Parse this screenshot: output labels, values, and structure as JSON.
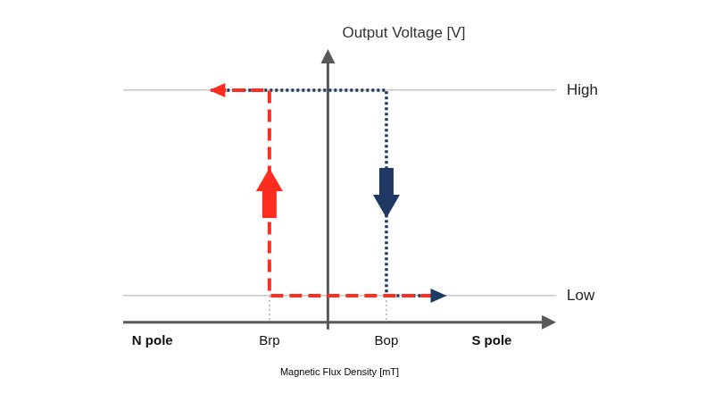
{
  "chart_data": {
    "type": "line",
    "y_label": "Output Voltage [V]",
    "x_label": "Magnetic Flux Density [mT]",
    "xlim": [
      -3.5,
      3.9
    ],
    "xticks": [
      {
        "value": -3,
        "label": "N pole"
      },
      {
        "value": -1,
        "label": "Brp"
      },
      {
        "value": 1,
        "label": "Bop"
      },
      {
        "value": 2.8,
        "label": "S pole"
      }
    ],
    "ylim": [
      -0.13,
      1.2
    ],
    "yticks": [
      {
        "value": 0,
        "label": "Low"
      },
      {
        "value": 1,
        "label": "High"
      }
    ],
    "grid": "y",
    "series": [
      {
        "color": "#ff2d1f",
        "line_style": "dashed",
        "x": [
          1.8,
          -1,
          -1,
          -2
        ],
        "values": [
          0,
          0,
          1,
          1
        ]
      },
      {
        "color": "#1f3864",
        "line_style": "dotted",
        "x": [
          -2,
          1,
          1,
          2
        ],
        "values": [
          1,
          1,
          0,
          0
        ]
      }
    ]
  }
}
